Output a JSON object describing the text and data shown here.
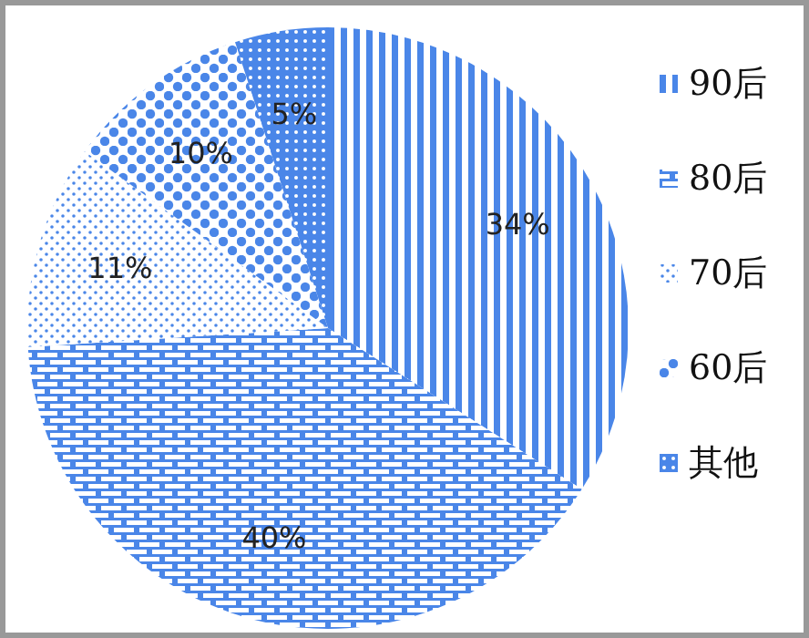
{
  "chart_data": {
    "type": "pie",
    "categories": [
      "90后",
      "80后",
      "70后",
      "60后",
      "其他"
    ],
    "values": [
      34,
      40,
      11,
      10,
      5
    ],
    "colors": [
      "#4a86e8",
      "#4a86e8",
      "#4a86e8",
      "#4a86e8",
      "#4a86e8"
    ],
    "value_labels": [
      "34%",
      "40%",
      "11%",
      "10%",
      "5%"
    ],
    "legend": "right"
  }
}
